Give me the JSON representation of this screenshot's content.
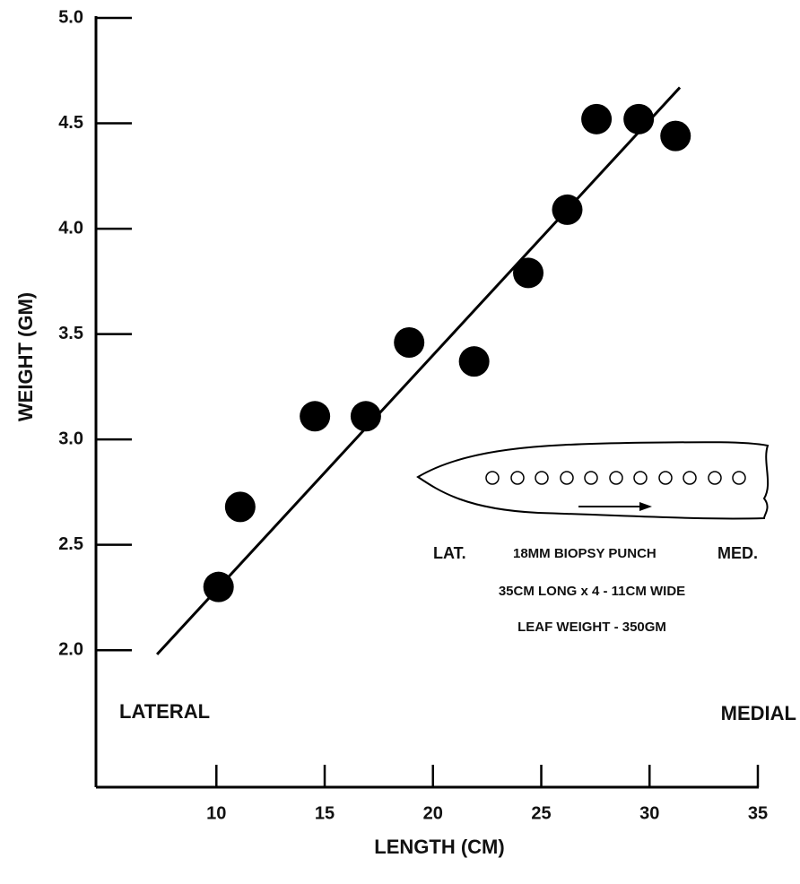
{
  "chart_data": {
    "type": "scatter",
    "x_label": "LENGTH (CM)",
    "y_label": "WEIGHT (GM)",
    "xlim": [
      4.44,
      35
    ],
    "ylim": [
      1.35,
      5.0
    ],
    "xticks": [
      10,
      15,
      20,
      25,
      30,
      35
    ],
    "yticks": [
      {
        "value": 5,
        "label": "5.0"
      },
      4.5,
      {
        "value": 4,
        "label": "4.0"
      },
      3.5,
      {
        "value": 3,
        "label": "3.0"
      },
      2.5,
      {
        "value": 2,
        "label": "2.0"
      }
    ],
    "color": "#000000",
    "x": [
      10.1,
      11.1,
      14.55,
      16.9,
      18.9,
      21.9,
      24.4,
      26.2,
      27.55,
      29.5,
      31.2
    ],
    "y": [
      2.3,
      2.68,
      3.11,
      3.11,
      3.46,
      3.37,
      3.79,
      4.09,
      4.52,
      4.52,
      4.44
    ],
    "fit_line": {
      "x": [
        7.26,
        31.4
      ],
      "y": [
        1.98,
        4.67
      ]
    },
    "annotations": {
      "left": "LATERAL",
      "right": "MEDIAL",
      "lat": "LAT.",
      "punch": "18MM BIOPSY PUNCH",
      "med": "MED.",
      "size": "35CM LONG x 4 - 11CM WIDE",
      "leaf_weight": "LEAF WEIGHT - 350GM"
    }
  }
}
